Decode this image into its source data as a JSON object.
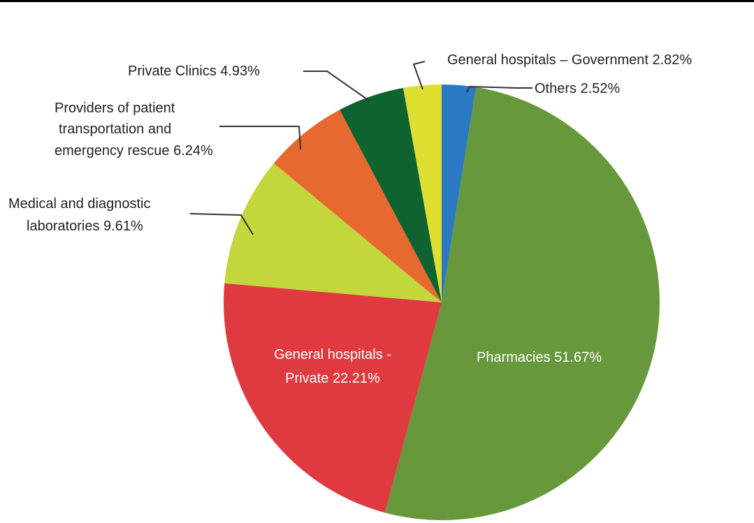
{
  "chart_data": {
    "type": "pie",
    "title": "",
    "start": "top",
    "direction": "clockwise",
    "slices": [
      {
        "label": "Others",
        "value": 2.52,
        "text": "Others 2.52%",
        "color": "#2a79c2"
      },
      {
        "label": "Pharmacies",
        "value": 51.67,
        "text": "Pharmacies 51.67%",
        "color": "#67983b"
      },
      {
        "label": "General hospitals - Private",
        "value": 22.21,
        "text_lines": [
          "General hospitals -",
          "Private 22.21%"
        ],
        "color": "#df3a40"
      },
      {
        "label": "Medical and diagnostic laboratories",
        "value": 9.61,
        "text_lines": [
          "Medical and diagnostic",
          "laboratories 9.61%"
        ],
        "color": "#c3d73d"
      },
      {
        "label": "Providers of patient transportation and emergency rescue",
        "value": 6.24,
        "text_lines": [
          "Providers of patient",
          "transportation and",
          "emergency rescue 6.24%"
        ],
        "color": "#e8692f"
      },
      {
        "label": "Private Clinics",
        "value": 4.93,
        "text": "Private Clinics 4.93%",
        "color": "#0f6330"
      },
      {
        "label": "General hospitals – Government",
        "value": 2.82,
        "text": "General hospitals – Government 2.82%",
        "color": "#dedf31"
      }
    ]
  }
}
